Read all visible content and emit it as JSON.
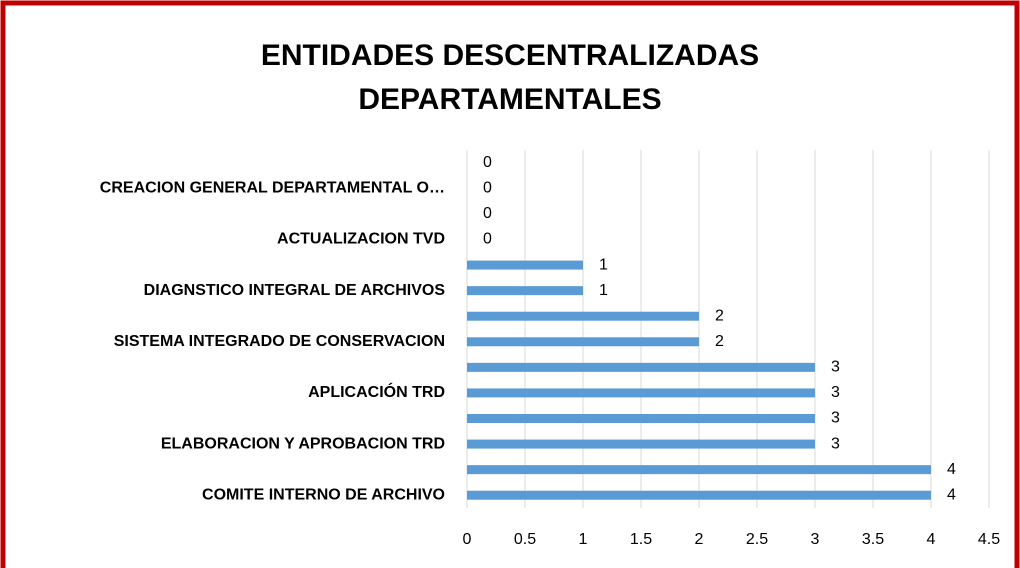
{
  "chart_data": {
    "type": "bar",
    "orientation": "horizontal",
    "title": "ENTIDADES DESCENTRALIZADAS DEPARTAMENTALES",
    "categories": [
      "COMITE INTERNO DE ARCHIVO",
      null,
      "ELABORACION Y APROBACION  TRD",
      null,
      "APLICACIÓN TRD",
      null,
      "SISTEMA INTEGRADO DE CONSERVACION",
      null,
      "DIAGNSTICO INTEGRAL DE ARCHIVOS",
      null,
      "ACTUALIZACION TVD",
      null,
      "CREACION GENERAL DEPARTAMENTAL O…",
      null
    ],
    "values": [
      4,
      4,
      3,
      3,
      3,
      3,
      2,
      2,
      1,
      1,
      0,
      0,
      0,
      0
    ],
    "color": "#5b9bd5",
    "xlim": [
      0,
      4.5
    ],
    "xticks": [
      0,
      0.5,
      1,
      1.5,
      2,
      2.5,
      3,
      3.5,
      4,
      4.5
    ],
    "grid": true
  }
}
